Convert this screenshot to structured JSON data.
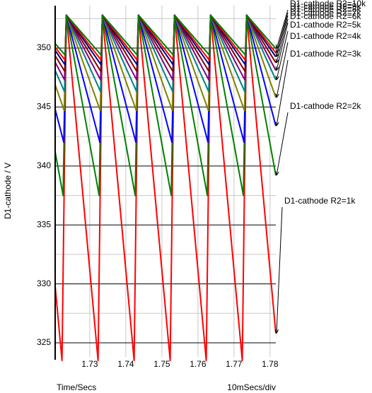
{
  "chart_data": {
    "type": "line",
    "y_label": "D1-cathode / V",
    "x_label": "Time/Secs",
    "x_scale_label": "10mSecs/div",
    "xlim": [
      1.7204,
      1.7816
    ],
    "xticks": [
      1.73,
      1.74,
      1.75,
      1.76,
      1.77,
      1.78
    ],
    "ylim": [
      323.8,
      353.6
    ],
    "yticks": [
      325,
      330,
      335,
      340,
      345,
      350
    ],
    "minor_yticks": [
      327.5,
      332.5,
      337.5,
      342.5,
      347.5,
      352.5
    ],
    "grid": true,
    "series": [
      {
        "name": "D1-cathode R2=1k",
        "color": "#ff0000",
        "x": [
          1.7204,
          1.7223,
          1.7235,
          1.7323,
          1.7335,
          1.7423,
          1.7435,
          1.7523,
          1.7535,
          1.7623,
          1.7635,
          1.7723,
          1.7735,
          1.7816
        ],
        "values": [
          329.8,
          323.5,
          352.8,
          323.5,
          352.8,
          323.5,
          352.8,
          323.5,
          352.8,
          323.5,
          352.8,
          323.5,
          352.8,
          325.8
        ]
      },
      {
        "name": "D1-cathode R2=2k",
        "color": "#008000",
        "x": [
          1.7204,
          1.7226,
          1.7235,
          1.7326,
          1.7335,
          1.7426,
          1.7435,
          1.7526,
          1.7535,
          1.7626,
          1.7635,
          1.7726,
          1.7735,
          1.7816
        ],
        "values": [
          341.2,
          337.5,
          352.8,
          337.5,
          352.8,
          337.5,
          352.8,
          337.5,
          352.8,
          337.5,
          352.8,
          337.5,
          352.8,
          339.2
        ]
      },
      {
        "name": "D1-cathode R2=3k",
        "color": "#0000ff",
        "x": [
          1.7204,
          1.7228,
          1.7235,
          1.7328,
          1.7335,
          1.7428,
          1.7435,
          1.7528,
          1.7535,
          1.7628,
          1.7635,
          1.7728,
          1.7735,
          1.7816
        ],
        "values": [
          344.8,
          342.0,
          352.8,
          342.0,
          352.8,
          342.0,
          352.8,
          342.0,
          352.8,
          342.0,
          352.8,
          342.0,
          352.8,
          343.4
        ]
      },
      {
        "name": "D1-cathode R2=4k",
        "color": "#808000",
        "x": [
          1.7204,
          1.7229,
          1.7235,
          1.7329,
          1.7335,
          1.7429,
          1.7435,
          1.7529,
          1.7535,
          1.7629,
          1.7635,
          1.7729,
          1.7735,
          1.7816
        ],
        "values": [
          346.9,
          344.7,
          352.8,
          344.7,
          352.8,
          344.7,
          352.8,
          344.7,
          352.8,
          344.7,
          352.8,
          344.7,
          352.8,
          345.8
        ]
      },
      {
        "name": "D1-cathode R2=5k",
        "color": "#008080",
        "x": [
          1.7204,
          1.723,
          1.7235,
          1.733,
          1.7335,
          1.743,
          1.7435,
          1.753,
          1.7535,
          1.763,
          1.7635,
          1.773,
          1.7735,
          1.7816
        ],
        "values": [
          348.1,
          346.3,
          352.8,
          346.3,
          352.8,
          346.3,
          352.8,
          346.3,
          352.8,
          346.3,
          352.8,
          346.3,
          352.8,
          347.3
        ]
      },
      {
        "name": "D1-cathode R2=6k",
        "color": "#800080",
        "x": [
          1.7204,
          1.723,
          1.7235,
          1.733,
          1.7335,
          1.743,
          1.7435,
          1.753,
          1.7535,
          1.763,
          1.7635,
          1.773,
          1.7735,
          1.7816
        ],
        "values": [
          348.8,
          347.3,
          352.8,
          347.3,
          352.8,
          347.3,
          352.8,
          347.3,
          352.8,
          347.3,
          352.8,
          347.3,
          352.8,
          348.1
        ]
      },
      {
        "name": "D1-cathode R2=7k",
        "color": "#800000",
        "x": [
          1.7204,
          1.7231,
          1.7235,
          1.7331,
          1.7335,
          1.7431,
          1.7435,
          1.7531,
          1.7535,
          1.7631,
          1.7635,
          1.7731,
          1.7735,
          1.7816
        ],
        "values": [
          349.35,
          348.0,
          352.8,
          348.0,
          352.8,
          348.0,
          352.8,
          348.0,
          352.8,
          348.0,
          352.8,
          348.0,
          352.8,
          348.75
        ]
      },
      {
        "name": "D1-cathode R2=8k",
        "color": "#000080",
        "x": [
          1.7204,
          1.7231,
          1.7235,
          1.7331,
          1.7335,
          1.7431,
          1.7435,
          1.7531,
          1.7535,
          1.7631,
          1.7635,
          1.7731,
          1.7735,
          1.7816
        ],
        "values": [
          349.8,
          348.6,
          352.8,
          348.6,
          352.8,
          348.6,
          352.8,
          348.6,
          352.8,
          348.6,
          352.8,
          348.6,
          352.8,
          349.26
        ]
      },
      {
        "name": "D1-cathode R2=9k",
        "color": "#ff0000",
        "x": [
          1.7204,
          1.7231,
          1.7235,
          1.7331,
          1.7335,
          1.7431,
          1.7435,
          1.7531,
          1.7535,
          1.7631,
          1.7635,
          1.7731,
          1.7735,
          1.7816
        ],
        "values": [
          350.07,
          349.0,
          352.8,
          349.0,
          352.8,
          349.0,
          352.8,
          349.0,
          352.8,
          349.0,
          352.8,
          349.0,
          352.8,
          349.6
        ]
      },
      {
        "name": "D1-cathode R2=10k",
        "color": "#008000",
        "x": [
          1.7204,
          1.7232,
          1.7235,
          1.7332,
          1.7335,
          1.7432,
          1.7435,
          1.7532,
          1.7535,
          1.7632,
          1.7635,
          1.7732,
          1.7735,
          1.7816
        ],
        "values": [
          350.38,
          349.4,
          352.8,
          349.4,
          352.8,
          349.4,
          352.8,
          349.4,
          352.8,
          349.4,
          352.8,
          349.4,
          352.8,
          349.96
        ]
      }
    ]
  }
}
